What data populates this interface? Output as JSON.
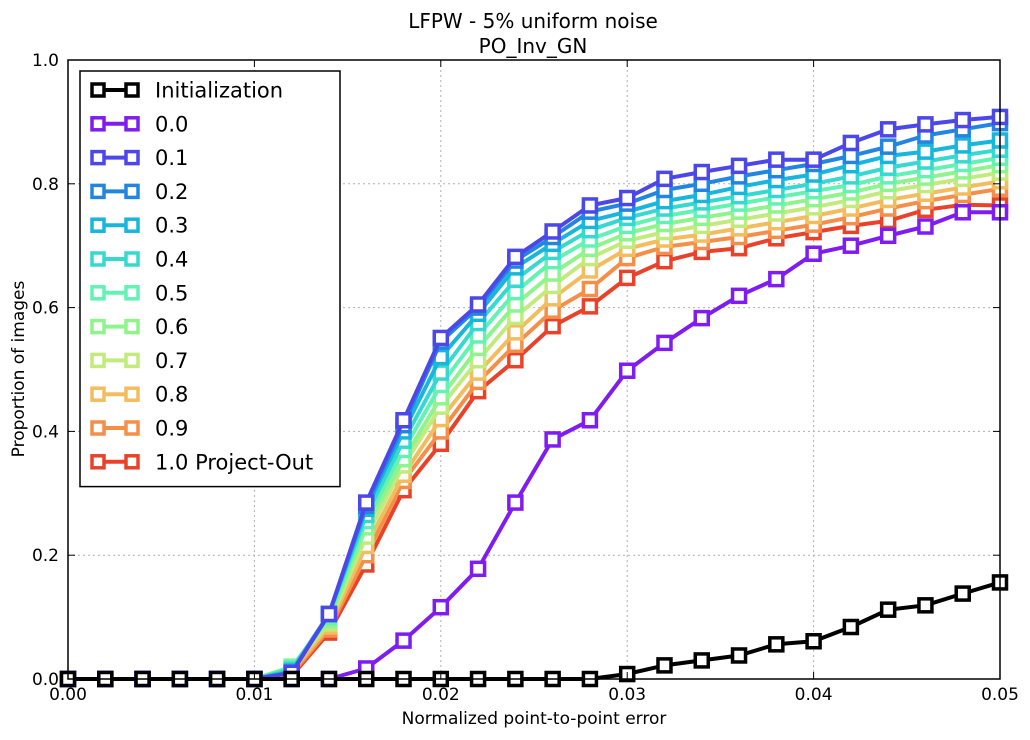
{
  "chart_data": {
    "type": "line",
    "title": "LFPW - 5% uniform noise",
    "subtitle": "PO_Inv_GN",
    "xlabel": "Normalized point-to-point error",
    "ylabel": "Proportion of images",
    "xlim": [
      0.0,
      0.05
    ],
    "ylim": [
      0.0,
      1.0
    ],
    "xticks": [
      "0.00",
      "0.01",
      "0.02",
      "0.03",
      "0.04",
      "0.05"
    ],
    "yticks": [
      "0.0",
      "0.2",
      "0.4",
      "0.6",
      "0.8",
      "1.0"
    ],
    "grid": true,
    "legend_position": "upper-left",
    "marker": "hollow-square",
    "x": [
      0.0,
      0.002,
      0.004,
      0.006,
      0.008,
      0.01,
      0.012,
      0.014,
      0.016,
      0.018,
      0.02,
      0.022,
      0.024,
      0.026,
      0.028,
      0.03,
      0.032,
      0.034,
      0.036,
      0.038,
      0.04,
      0.042,
      0.044,
      0.046,
      0.048,
      0.05
    ],
    "series": [
      {
        "name": "Initialization",
        "color": "#000000",
        "values": [
          0,
          0,
          0,
          0,
          0,
          0,
          0,
          0,
          0,
          0,
          0,
          0,
          0,
          0,
          0,
          0.008,
          0.022,
          0.03,
          0.038,
          0.056,
          0.061,
          0.084,
          0.112,
          0.119,
          0.138,
          0.156
        ]
      },
      {
        "name": "0.0",
        "color": "#7f1df0",
        "values": [
          0,
          0,
          0,
          0,
          0,
          0,
          0,
          0,
          0.017,
          0.062,
          0.116,
          0.178,
          0.285,
          0.387,
          0.418,
          0.498,
          0.543,
          0.583,
          0.619,
          0.646,
          0.687,
          0.7,
          0.716,
          0.731,
          0.754,
          0.754
        ]
      },
      {
        "name": "0.1",
        "color": "#4c47e8",
        "values": [
          0,
          0,
          0,
          0,
          0,
          0,
          0.01,
          0.105,
          0.285,
          0.418,
          0.551,
          0.605,
          0.682,
          0.723,
          0.765,
          0.777,
          0.808,
          0.819,
          0.829,
          0.839,
          0.839,
          0.866,
          0.888,
          0.896,
          0.903,
          0.908
        ]
      },
      {
        "name": "0.2",
        "color": "#2286e0",
        "values": [
          0,
          0,
          0,
          0,
          0,
          0,
          0.01,
          0.105,
          0.28,
          0.41,
          0.545,
          0.6,
          0.676,
          0.714,
          0.755,
          0.768,
          0.79,
          0.8,
          0.812,
          0.822,
          0.832,
          0.845,
          0.86,
          0.878,
          0.888,
          0.898
        ]
      },
      {
        "name": "0.3",
        "color": "#18b5dc",
        "values": [
          0,
          0,
          0,
          0,
          0,
          0,
          0.012,
          0.105,
          0.275,
          0.4,
          0.52,
          0.59,
          0.665,
          0.703,
          0.74,
          0.755,
          0.772,
          0.782,
          0.795,
          0.806,
          0.815,
          0.83,
          0.845,
          0.852,
          0.862,
          0.87
        ]
      },
      {
        "name": "0.4",
        "color": "#35d9d0",
        "values": [
          0,
          0,
          0,
          0,
          0,
          0,
          0.015,
          0.105,
          0.265,
          0.385,
          0.495,
          0.575,
          0.645,
          0.69,
          0.725,
          0.745,
          0.76,
          0.77,
          0.78,
          0.79,
          0.8,
          0.812,
          0.826,
          0.836,
          0.846,
          0.855
        ]
      },
      {
        "name": "0.5",
        "color": "#62f3b4",
        "values": [
          0,
          0,
          0,
          0,
          0,
          0,
          0.018,
          0.1,
          0.255,
          0.37,
          0.475,
          0.555,
          0.625,
          0.675,
          0.71,
          0.732,
          0.748,
          0.758,
          0.768,
          0.778,
          0.788,
          0.798,
          0.812,
          0.822,
          0.832,
          0.842
        ]
      },
      {
        "name": "0.6",
        "color": "#8ff48c",
        "values": [
          0,
          0,
          0,
          0,
          0,
          0,
          0.02,
          0.095,
          0.245,
          0.355,
          0.455,
          0.535,
          0.605,
          0.655,
          0.695,
          0.72,
          0.735,
          0.745,
          0.755,
          0.765,
          0.775,
          0.786,
          0.8,
          0.81,
          0.82,
          0.83
        ]
      },
      {
        "name": "0.7",
        "color": "#c2ea7c",
        "values": [
          0,
          0,
          0,
          0,
          0,
          0,
          0.018,
          0.09,
          0.23,
          0.345,
          0.44,
          0.515,
          0.585,
          0.635,
          0.68,
          0.708,
          0.722,
          0.732,
          0.742,
          0.752,
          0.762,
          0.774,
          0.788,
          0.798,
          0.808,
          0.818
        ]
      },
      {
        "name": "0.8",
        "color": "#f3bd5f",
        "values": [
          0,
          0,
          0,
          0,
          0,
          0,
          0.012,
          0.085,
          0.215,
          0.33,
          0.42,
          0.495,
          0.56,
          0.615,
          0.66,
          0.695,
          0.71,
          0.718,
          0.728,
          0.738,
          0.748,
          0.76,
          0.774,
          0.784,
          0.794,
          0.804
        ]
      },
      {
        "name": "0.9",
        "color": "#f58e48",
        "values": [
          0,
          0,
          0,
          0,
          0,
          0,
          0.008,
          0.08,
          0.2,
          0.32,
          0.4,
          0.48,
          0.54,
          0.595,
          0.63,
          0.68,
          0.698,
          0.706,
          0.714,
          0.724,
          0.734,
          0.746,
          0.76,
          0.772,
          0.782,
          0.792
        ]
      },
      {
        "name": "1.0 Project-Out",
        "color": "#e8432a",
        "values": [
          0,
          0,
          0,
          0,
          0,
          0,
          0.005,
          0.075,
          0.185,
          0.305,
          0.38,
          0.465,
          0.515,
          0.57,
          0.602,
          0.648,
          0.675,
          0.69,
          0.696,
          0.712,
          0.722,
          0.732,
          0.74,
          0.758,
          0.766,
          0.765
        ]
      }
    ]
  }
}
